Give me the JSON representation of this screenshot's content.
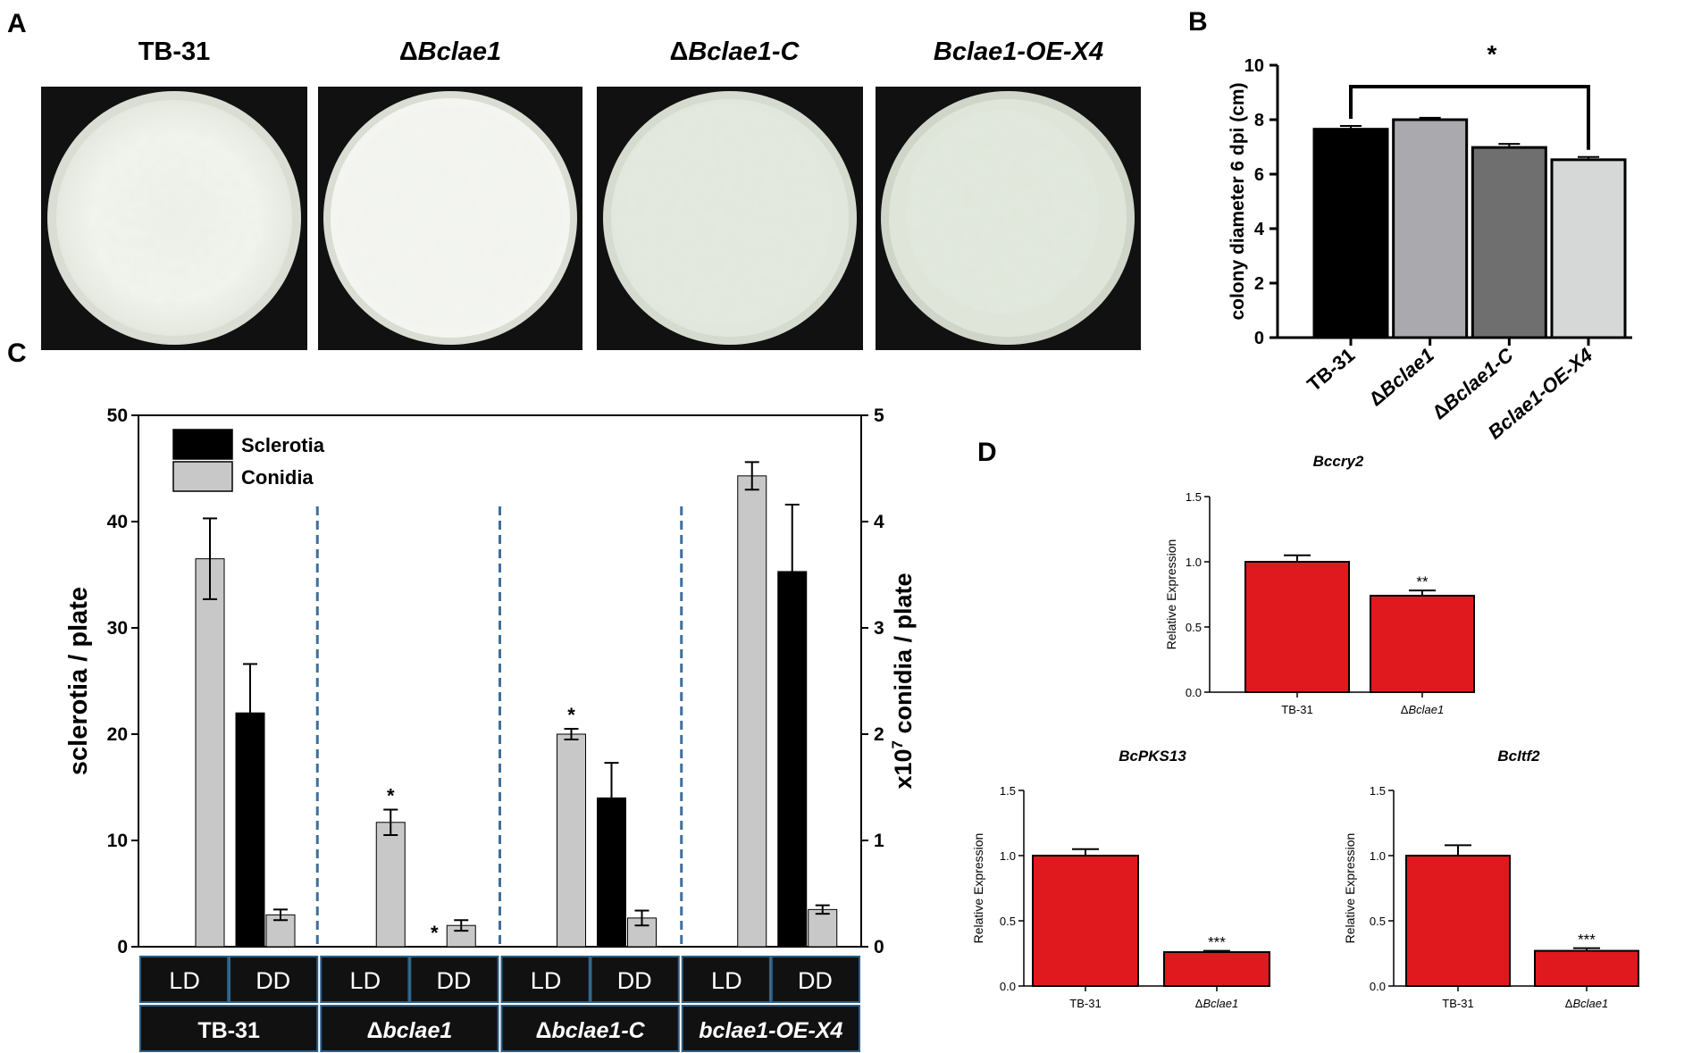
{
  "panels": {
    "a": "A",
    "b": "B",
    "c": "C",
    "d": "D"
  },
  "plates": [
    {
      "label": "TB-31",
      "prefix": "",
      "italic": false
    },
    {
      "label": "Bclae1",
      "prefix": "Δ",
      "italic": true
    },
    {
      "label": "Bclae1-C",
      "prefix": "Δ",
      "italic": true
    },
    {
      "label": "Bclae1-OE-X4",
      "prefix": "",
      "italic": true
    }
  ],
  "chart_data": [
    {
      "id": "B",
      "type": "bar",
      "ylabel": "colony diameter 6 dpi (cm)",
      "ylim": [
        0,
        10
      ],
      "yticks": [
        "0",
        "2",
        "4",
        "6",
        "8",
        "10"
      ],
      "categories": [
        "TB-31",
        "ΔBclae1",
        "ΔBclae1-C",
        "Bclae1-OE-X4"
      ],
      "values": [
        7.65,
        8.0,
        6.98,
        6.53
      ],
      "errors": [
        0.12,
        0.07,
        0.13,
        0.1
      ],
      "colors": [
        "#000000",
        "#a9a9ae",
        "#6f6f6f",
        "#d6d8d8"
      ],
      "annotation": "*"
    },
    {
      "id": "C",
      "type": "bar",
      "ylabel": "sclerotia / plate",
      "y2label_prefix": "x10",
      "y2label_exp": "7",
      "y2label_suffix": " conidia / plate",
      "ylim": [
        0,
        50
      ],
      "y2lim": [
        0,
        5
      ],
      "yticks": [
        "0",
        "10",
        "20",
        "30",
        "40",
        "50"
      ],
      "y2ticks": [
        "0",
        "1",
        "2",
        "3",
        "4",
        "5"
      ],
      "legend": [
        "Sclerotia",
        "Conidia"
      ],
      "conditions": [
        "LD",
        "DD"
      ],
      "groups": [
        "TB-31",
        "Δbclae1",
        "Δbclae1-C",
        "bclae1-OE-X4"
      ],
      "series": [
        {
          "group": "TB-31",
          "ld_conidia": 3.65,
          "ld_conidia_err": 0.38,
          "dd_sclerotia": 22.0,
          "dd_sclerotia_err": 4.6,
          "dd_conidia": 0.3,
          "dd_conidia_err": 0.05
        },
        {
          "group": "Δbclae1",
          "ld_conidia": 1.17,
          "ld_conidia_err": 0.12,
          "ld_star": "*",
          "dd_sclerotia": 0,
          "dd_sclerotia_err": 0,
          "dd_star": "*",
          "dd_conidia": 0.2,
          "dd_conidia_err": 0.05
        },
        {
          "group": "Δbclae1-C",
          "ld_conidia": 2.0,
          "ld_conidia_err": 0.05,
          "ld_star": "*",
          "dd_sclerotia": 14.0,
          "dd_sclerotia_err": 3.3,
          "dd_conidia": 0.27,
          "dd_conidia_err": 0.07
        },
        {
          "group": "bclae1-OE-X4",
          "ld_conidia": 4.43,
          "ld_conidia_err": 0.13,
          "dd_sclerotia": 35.3,
          "dd_sclerotia_err": 6.3,
          "dd_conidia": 0.35,
          "dd_conidia_err": 0.04
        }
      ]
    },
    {
      "id": "D1",
      "type": "bar",
      "title": "Bccry2",
      "ylabel": "Relative Expression",
      "ylim": [
        0,
        1.5
      ],
      "yticks": [
        "0.0",
        "0.5",
        "1.0",
        "1.5"
      ],
      "categories": [
        "TB-31",
        "ΔBclae1"
      ],
      "values": [
        1.0,
        0.74
      ],
      "errors": [
        0.05,
        0.04
      ],
      "stars": [
        "",
        "**"
      ]
    },
    {
      "id": "D2",
      "type": "bar",
      "title": "BcPKS13",
      "ylabel": "Relative Expression",
      "ylim": [
        0,
        1.5
      ],
      "yticks": [
        "0.0",
        "0.5",
        "1.0",
        "1.5"
      ],
      "categories": [
        "TB-31",
        "ΔBclae1"
      ],
      "values": [
        1.0,
        0.26
      ],
      "errors": [
        0.05,
        0.01
      ],
      "stars": [
        "",
        "***"
      ]
    },
    {
      "id": "D3",
      "type": "bar",
      "title": "BcItf2",
      "ylabel": "Relative Expression",
      "ylim": [
        0,
        1.5
      ],
      "yticks": [
        "0.0",
        "0.5",
        "1.0",
        "1.5"
      ],
      "categories": [
        "TB-31",
        "ΔBclae1"
      ],
      "values": [
        1.0,
        0.27
      ],
      "errors": [
        0.08,
        0.02
      ],
      "stars": [
        "",
        "***"
      ]
    }
  ],
  "colors": {
    "red_bar": "#e0191e",
    "sclerotia": "#000000",
    "conidia": "#c8c8c8",
    "divider": "#3f6f9a",
    "plate_bg": "#111111",
    "agar": "#e7ebe4",
    "mycelium": "#f6f8f2"
  }
}
